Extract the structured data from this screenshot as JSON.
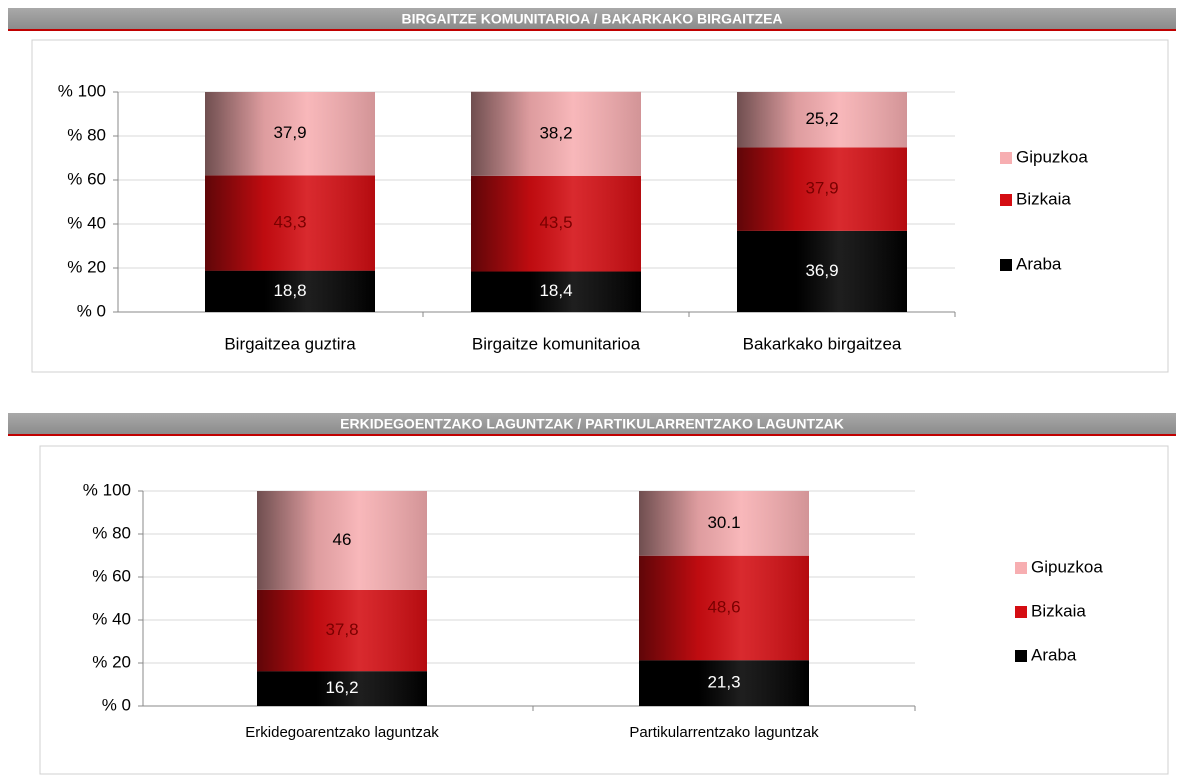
{
  "chart_data": [
    {
      "type": "bar",
      "stacked": true,
      "title": "BIRGAITZE KOMUNITARIOA / BAKARKAKO BIRGAITZEA",
      "categories": [
        "Birgaitzea guztira",
        "Birgaitze komunitarioa",
        "Bakarkako birgaitzea"
      ],
      "series": [
        {
          "name": "Araba",
          "color": "#000000",
          "label_color": "#ffffff",
          "values": [
            18.8,
            18.4,
            36.9
          ],
          "value_labels": [
            "18,8",
            "18,4",
            "36,9"
          ]
        },
        {
          "name": "Bizkaia",
          "color": "#d40d12",
          "label_color": "#7a0000",
          "values": [
            43.3,
            43.5,
            37.9
          ],
          "value_labels": [
            "43,3",
            "43,5",
            "37,9"
          ]
        },
        {
          "name": "Gipuzkoa",
          "color": "#f7aeb1",
          "label_color": "#000000",
          "values": [
            37.9,
            38.2,
            25.2
          ],
          "value_labels": [
            "37,9",
            "38,2",
            "25,2"
          ]
        }
      ],
      "ylim": [
        0,
        100
      ],
      "yticks": [
        {
          "value": 0,
          "label": "% 0"
        },
        {
          "value": 20,
          "label": "% 20"
        },
        {
          "value": 40,
          "label": "% 40"
        },
        {
          "value": 60,
          "label": "% 60"
        },
        {
          "value": 80,
          "label": "% 80"
        },
        {
          "value": 100,
          "label": "% 100"
        }
      ],
      "grid": true,
      "legend": "right"
    },
    {
      "type": "bar",
      "stacked": true,
      "title": "ERKIDEGOENTZAKO LAGUNTZAK / PARTIKULARRENTZAKO LAGUNTZAK",
      "categories": [
        "Erkidegoarentzako laguntzak",
        "Partikularrentzako laguntzak"
      ],
      "series": [
        {
          "name": "Araba",
          "color": "#000000",
          "label_color": "#ffffff",
          "values": [
            16.2,
            21.3
          ],
          "value_labels": [
            "16,2",
            "21,3"
          ]
        },
        {
          "name": "Bizkaia",
          "color": "#d40d12",
          "label_color": "#7a0000",
          "values": [
            37.8,
            48.6
          ],
          "value_labels": [
            "37,8",
            "48,6"
          ]
        },
        {
          "name": "Gipuzkoa",
          "color": "#f7aeb1",
          "label_color": "#000000",
          "values": [
            46,
            30.1
          ]
        }
      ],
      "ylim": [
        0,
        100
      ],
      "yticks": [
        {
          "value": 0,
          "label": "% 0"
        },
        {
          "value": 20,
          "label": "% 20"
        },
        {
          "value": 40,
          "label": "% 40"
        },
        {
          "value": 60,
          "label": "% 60"
        },
        {
          "value": 80,
          "label": "% 80"
        },
        {
          "value": 100,
          "label": "% 100"
        }
      ],
      "grid": true,
      "legend": "right"
    }
  ]
}
